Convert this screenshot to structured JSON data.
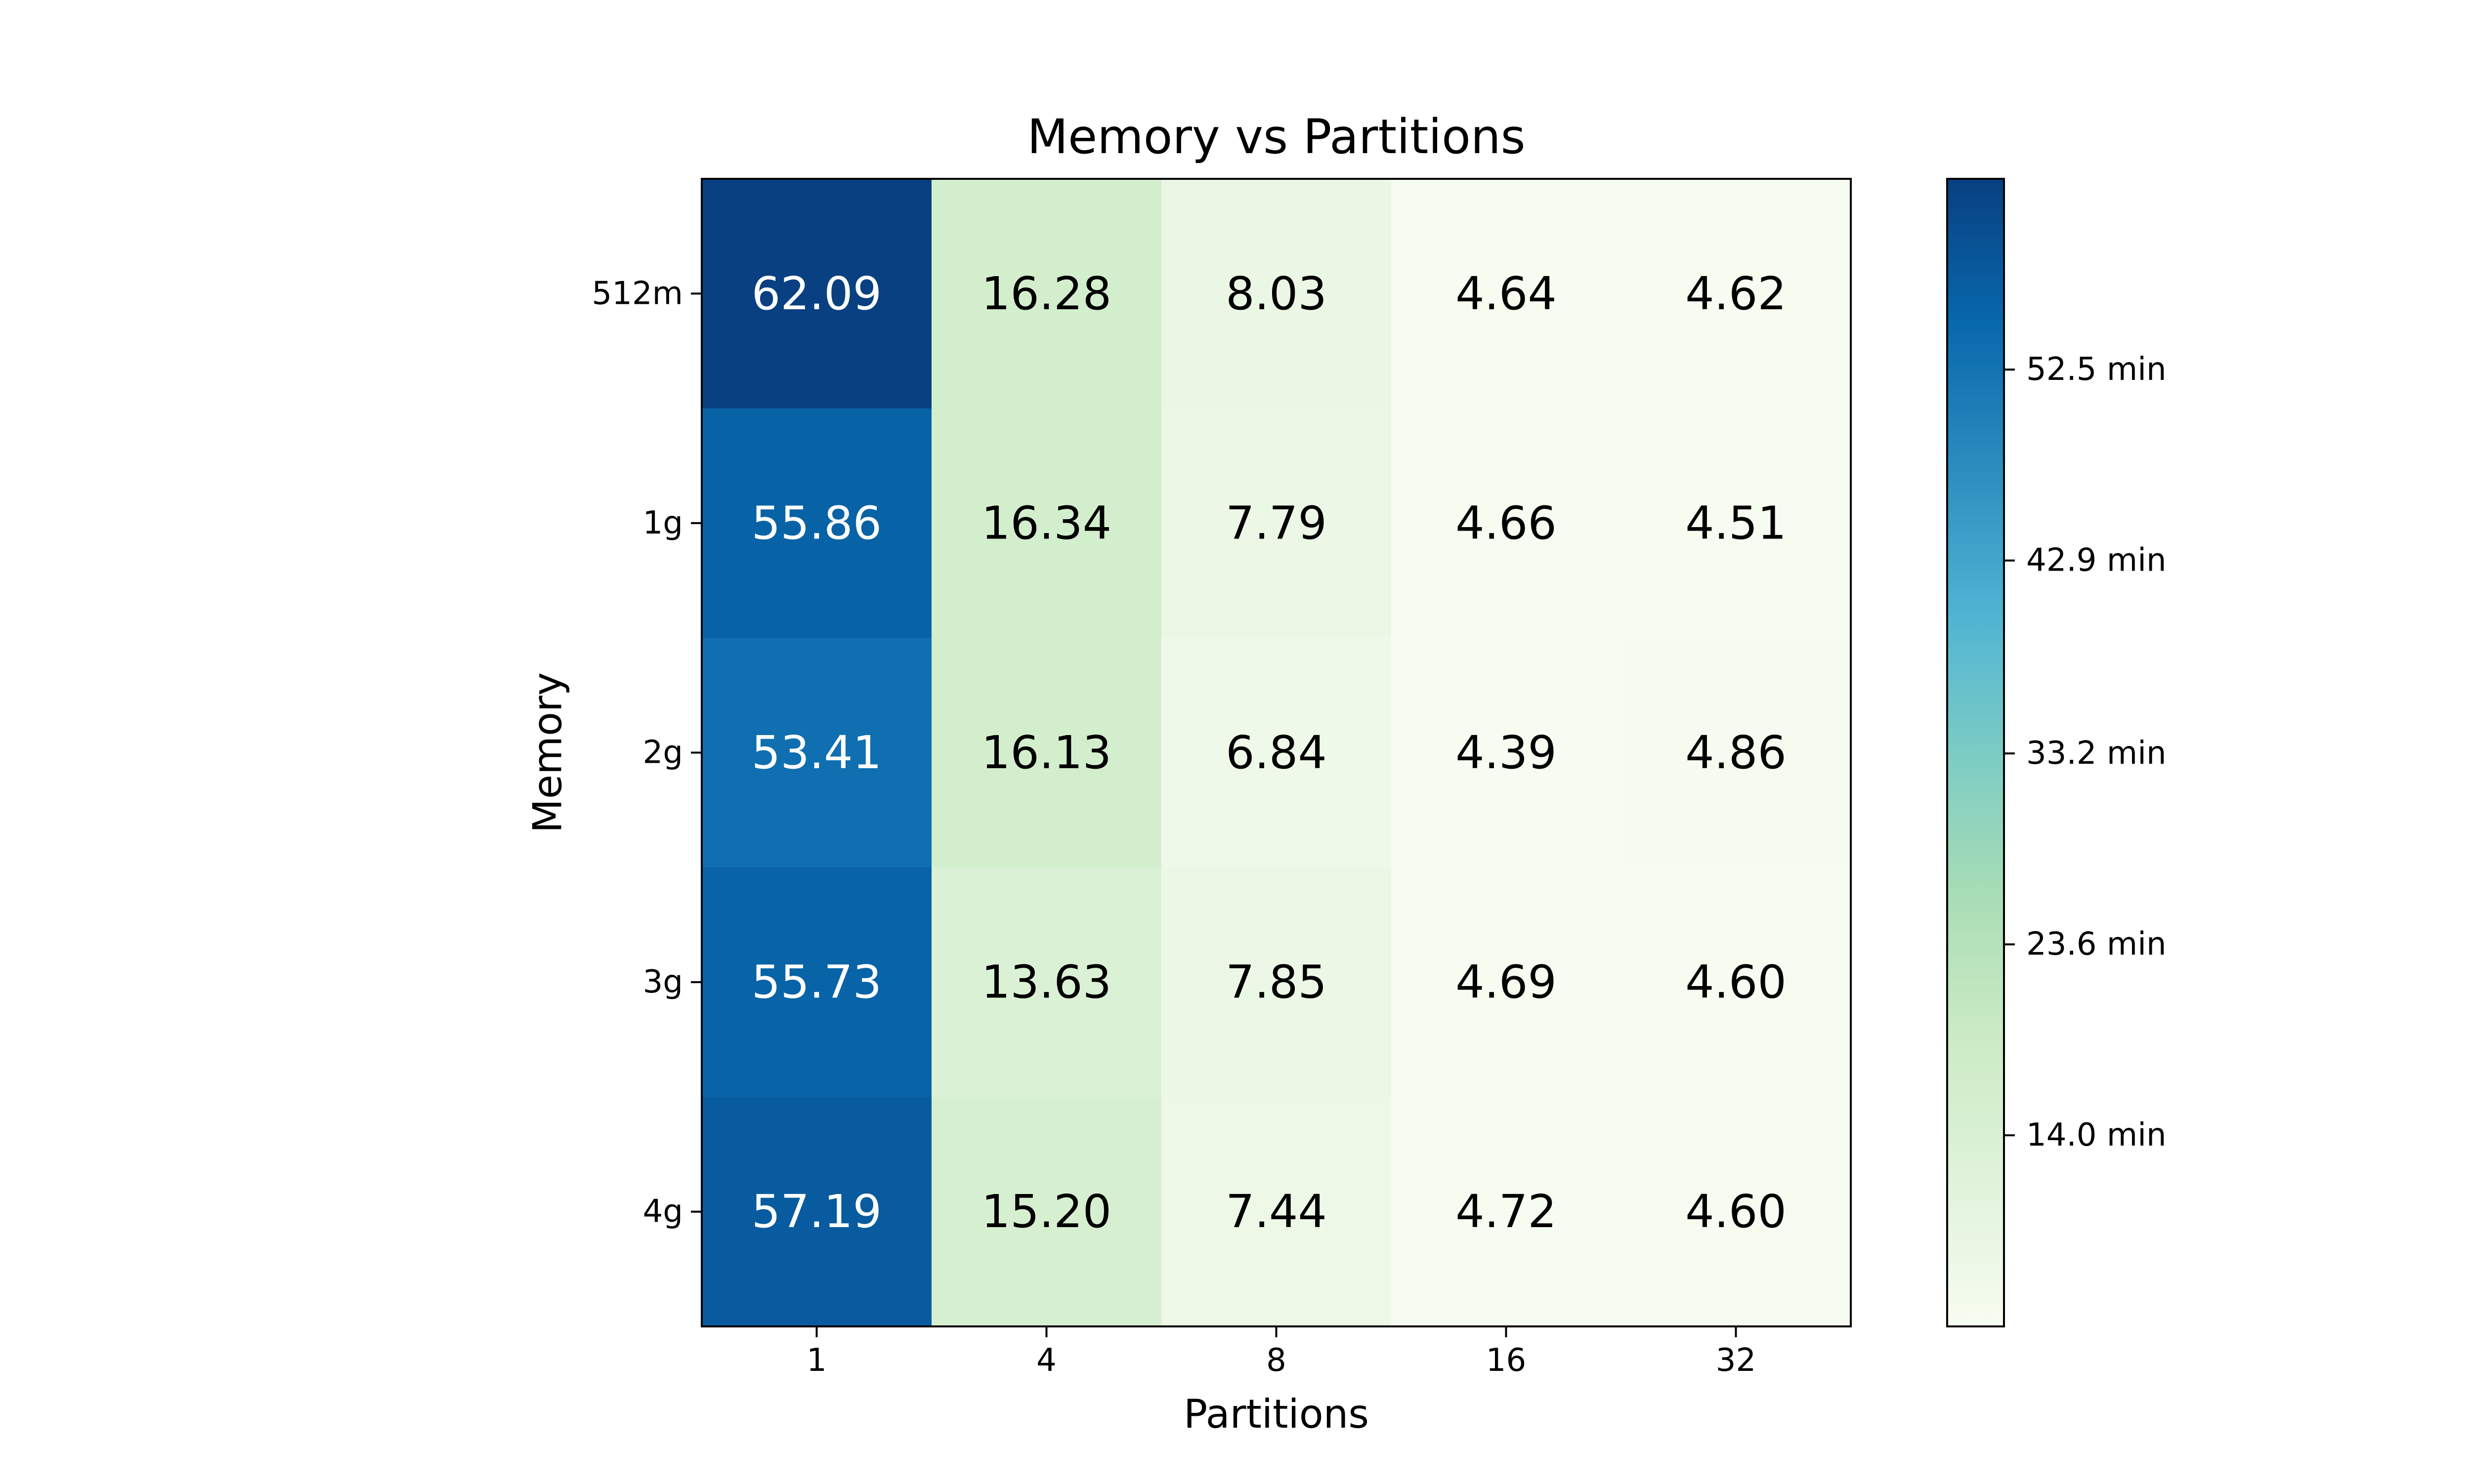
{
  "chart_data": {
    "type": "heatmap",
    "title": "Memory vs Partitions",
    "xlabel": "Partitions",
    "ylabel": "Memory",
    "x_categories": [
      "1",
      "4",
      "8",
      "16",
      "32"
    ],
    "y_categories": [
      "512m",
      "1g",
      "2g",
      "3g",
      "4g"
    ],
    "values": [
      [
        62.09,
        16.28,
        8.03,
        4.64,
        4.62
      ],
      [
        55.86,
        16.34,
        7.79,
        4.66,
        4.51
      ],
      [
        53.41,
        16.13,
        6.84,
        4.39,
        4.86
      ],
      [
        55.73,
        13.63,
        7.85,
        4.69,
        4.6
      ],
      [
        57.19,
        15.2,
        7.44,
        4.72,
        4.6
      ]
    ],
    "value_labels": [
      [
        "62.09",
        "16.28",
        "8.03",
        "4.64",
        "4.62"
      ],
      [
        "55.86",
        "16.34",
        "7.79",
        "4.66",
        "4.51"
      ],
      [
        "53.41",
        "16.13",
        "6.84",
        "4.39",
        "4.86"
      ],
      [
        "55.73",
        "13.63",
        "7.85",
        "4.69",
        "4.60"
      ],
      [
        "57.19",
        "15.20",
        "7.44",
        "4.72",
        "4.60"
      ]
    ],
    "colormap": "GnBu",
    "colormap_stops": [
      "#f7fcf0",
      "#e0f3db",
      "#ccebc5",
      "#a8ddb5",
      "#7bccc4",
      "#4eb3d3",
      "#2b8cbe",
      "#0868ac",
      "#084081"
    ],
    "color_range": [
      4.39,
      62.09
    ],
    "colorbar": {
      "ticks": [
        14.0,
        23.6,
        33.2,
        42.9,
        52.5
      ],
      "tick_labels": [
        "14.0 min",
        "23.6 min",
        "33.2 min",
        "42.9 min",
        "52.5 min"
      ]
    },
    "label_colors": {
      "light": "#ffffff",
      "dark": "#000000"
    },
    "grid": false
  }
}
